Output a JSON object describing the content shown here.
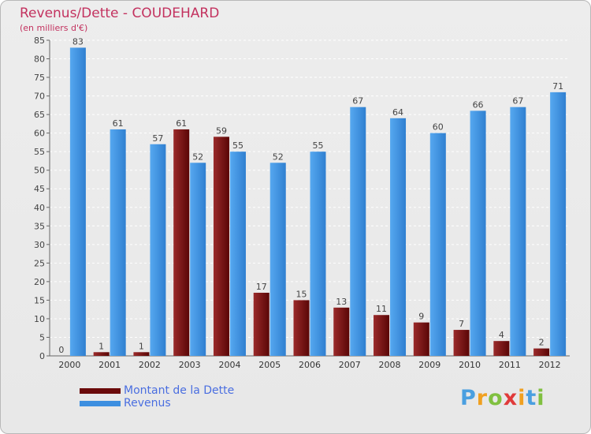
{
  "header": {
    "title": "Revenus/Dette - COUDEHARD",
    "subtitle": "(en milliers d'€)"
  },
  "chart_data": {
    "type": "bar",
    "categories": [
      "2000",
      "2001",
      "2002",
      "2003",
      "2004",
      "2005",
      "2006",
      "2007",
      "2008",
      "2009",
      "2010",
      "2011",
      "2012"
    ],
    "series": [
      {
        "name": "Montant de la Dette",
        "color": "#6b0a0a",
        "values": [
          0,
          1,
          1,
          61,
          59,
          17,
          15,
          13,
          11,
          9,
          7,
          4,
          2
        ]
      },
      {
        "name": "Revenus",
        "color": "#3d8fe0",
        "values": [
          83,
          61,
          57,
          52,
          55,
          52,
          55,
          67,
          64,
          60,
          66,
          67,
          71
        ]
      }
    ],
    "ylim": [
      0,
      85
    ],
    "yticks": [
      0,
      5,
      10,
      15,
      20,
      25,
      30,
      35,
      40,
      45,
      50,
      55,
      60,
      65,
      70,
      75,
      80,
      85
    ],
    "grid": true,
    "xlabel": "",
    "ylabel": "",
    "legend_position": "bottom-left"
  },
  "logo": {
    "letters": [
      "P",
      "r",
      "o",
      "x",
      "i",
      "t",
      "i"
    ],
    "colors": [
      "#4a9fe0",
      "#f0a020",
      "#80c040",
      "#e03a3a",
      "#f0a020",
      "#4a9fe0",
      "#80c040"
    ]
  }
}
